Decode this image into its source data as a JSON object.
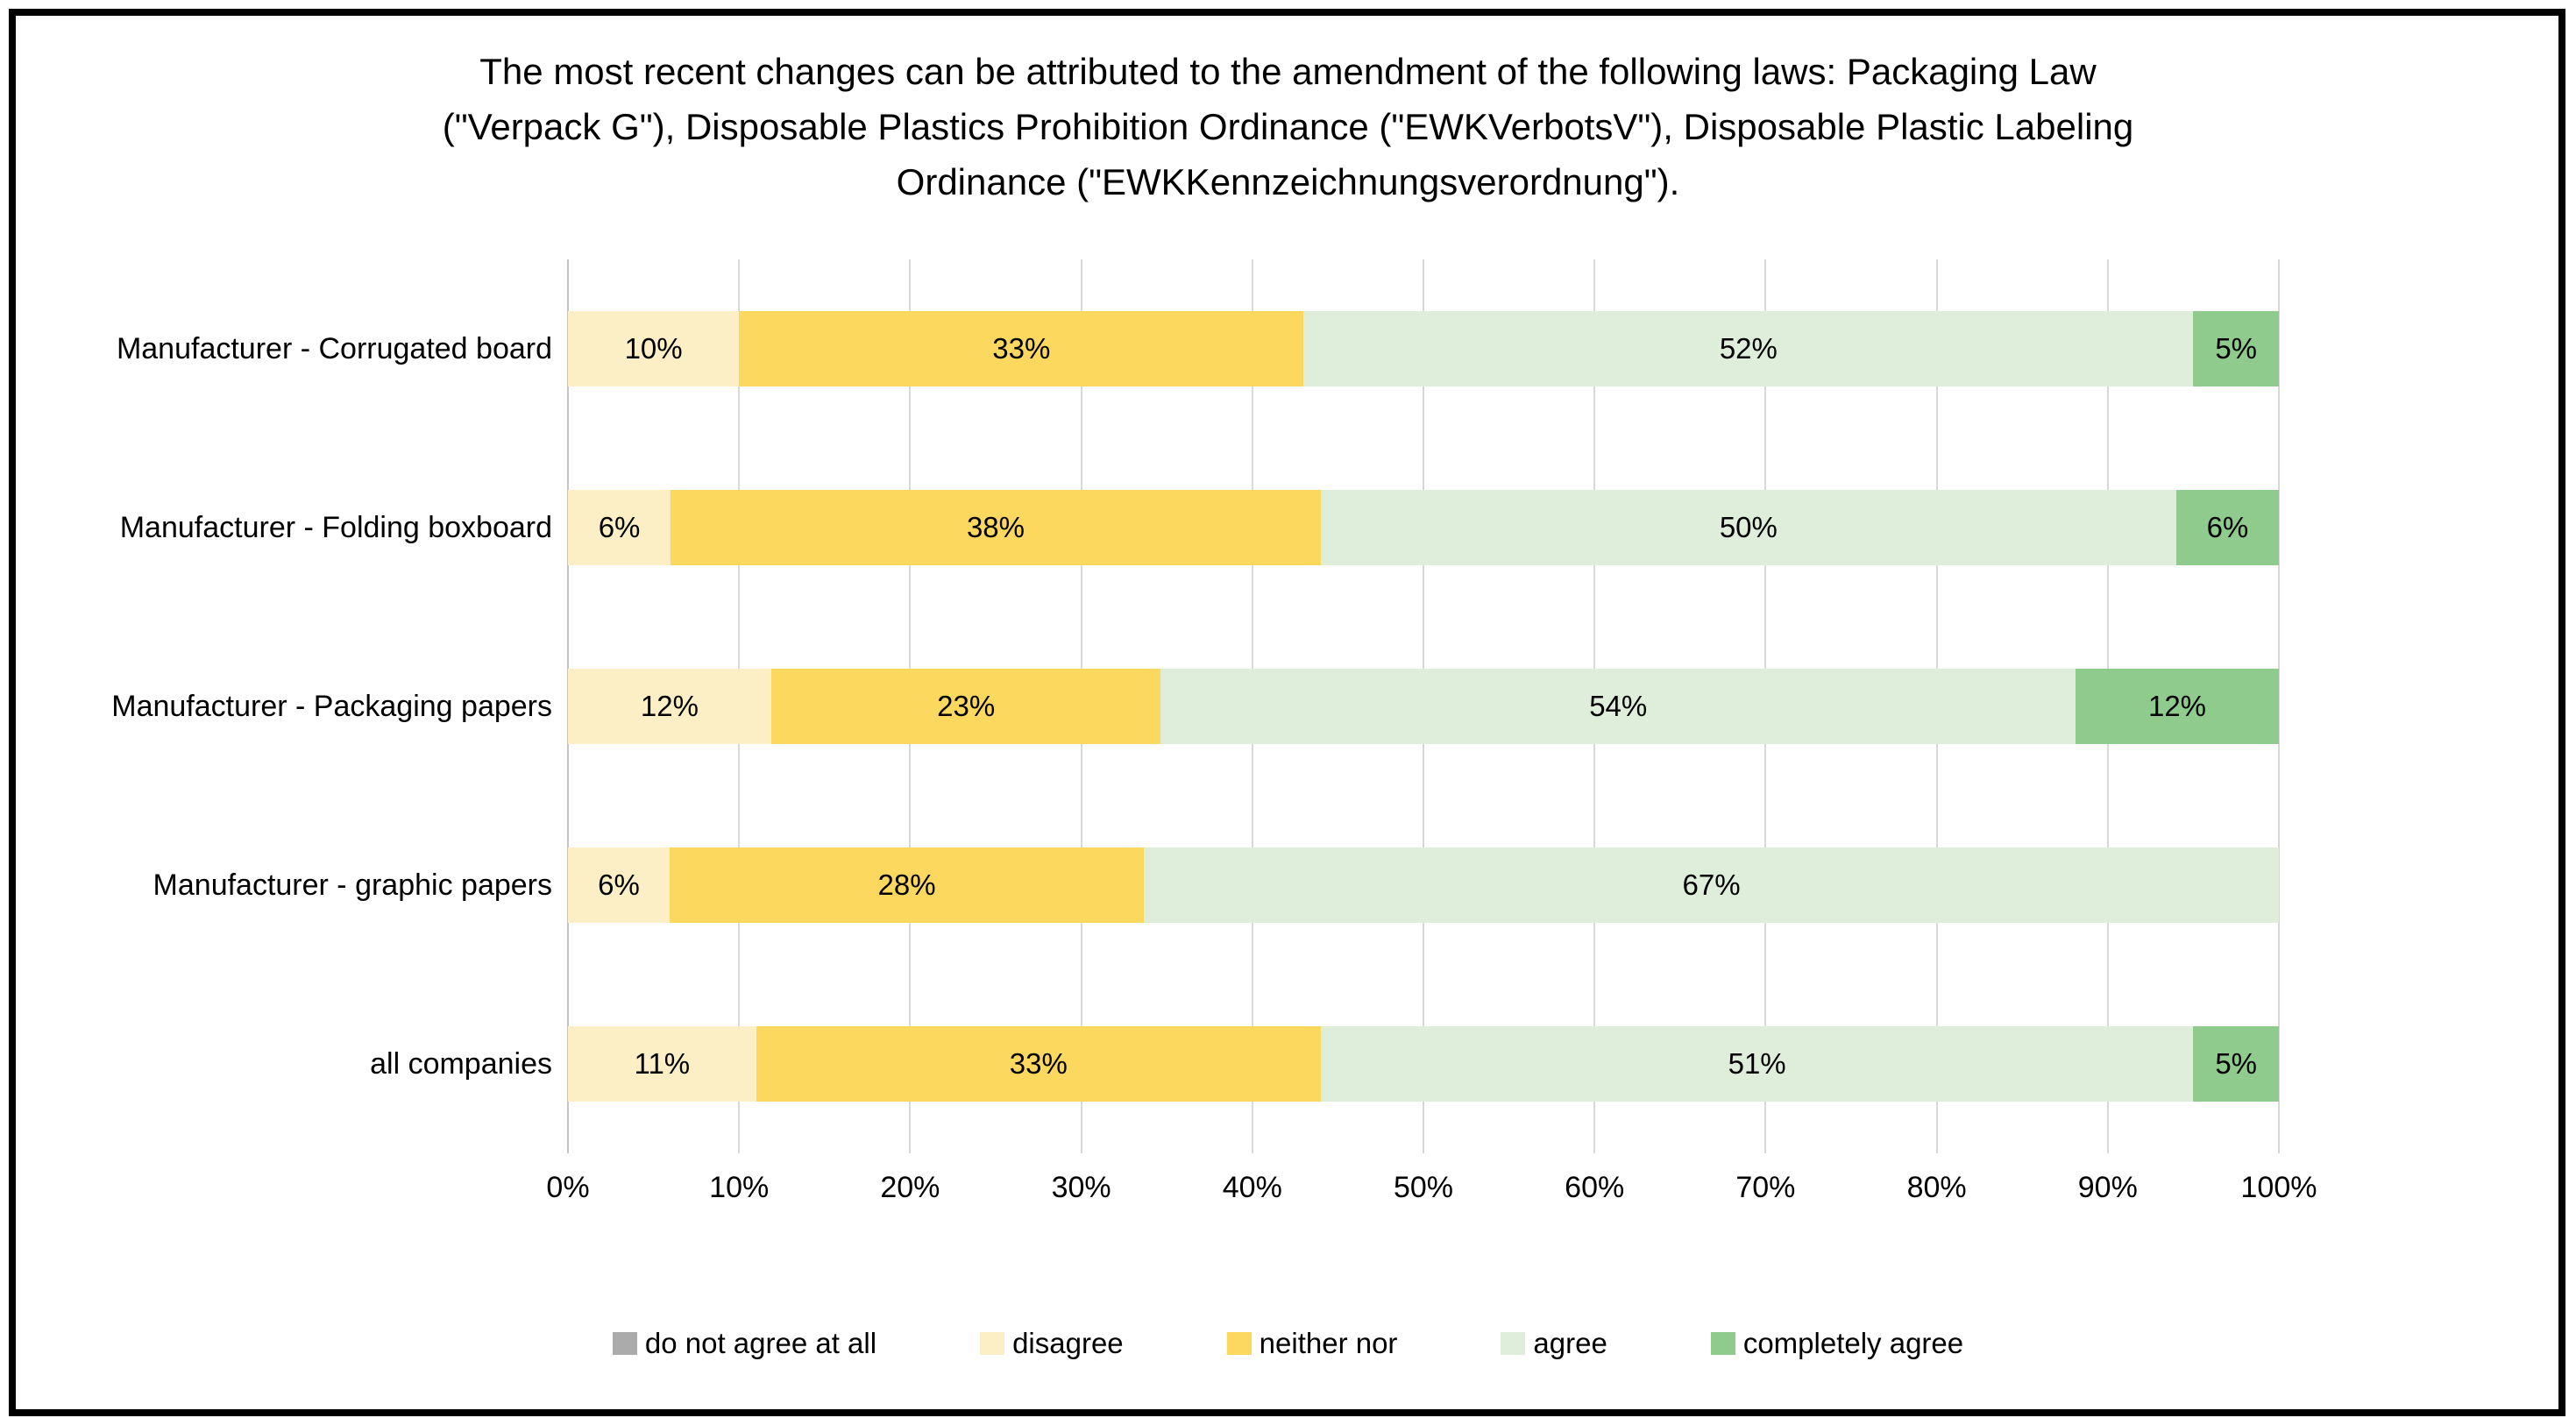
{
  "title": "The most recent changes can be attributed to the amendment of the following laws:  Packaging Law\n(\"Verpack G\"), Disposable Plastics Prohibition Ordinance (\"EWKVerbotsV\"),  Disposable Plastic Labeling\nOrdinance (\"EWKKennzeichnungsverordnung\").",
  "chart_data": {
    "type": "bar",
    "orientation": "horizontal",
    "stacked": "100%",
    "title": "The most recent changes can be attributed to the amendment of the following laws: Packaging Law (\"Verpack G\"), Disposable Plastics Prohibition Ordinance (\"EWKVerbotsV\"), Disposable Plastic Labeling Ordinance (\"EWKKennzeichnungsverordnung\").",
    "categories": [
      "Manufacturer - Corrugated board",
      "Manufacturer - Folding boxboard",
      "Manufacturer - Packaging papers",
      "Manufacturer - graphic papers",
      "all companies"
    ],
    "series": [
      {
        "name": "do not agree at all",
        "color": "#ABABAB",
        "values": [
          0,
          0,
          0,
          0,
          0
        ]
      },
      {
        "name": "disagree",
        "color": "#FCEFC5",
        "values": [
          10,
          6,
          12,
          6,
          11
        ]
      },
      {
        "name": "neither nor",
        "color": "#FDD85E",
        "values": [
          33,
          38,
          23,
          28,
          33
        ]
      },
      {
        "name": "agree",
        "color": "#DEEEDB",
        "values": [
          52,
          50,
          54,
          67,
          51
        ]
      },
      {
        "name": "completely agree",
        "color": "#8FCB8D",
        "values": [
          5,
          6,
          12,
          0,
          5
        ]
      }
    ],
    "data_label_suffix": "%",
    "x_ticks": [
      "0%",
      "10%",
      "20%",
      "30%",
      "40%",
      "50%",
      "60%",
      "70%",
      "80%",
      "90%",
      "100%"
    ],
    "xlim": [
      0,
      100
    ],
    "grid": true,
    "gridline_color": "#D8D8D8",
    "legend_position": "bottom"
  }
}
